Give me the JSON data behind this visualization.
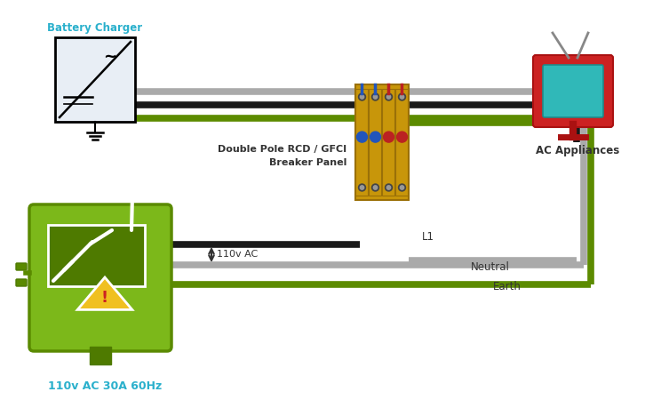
{
  "bg_color": "#ffffff",
  "wire_black": "#1a1a1a",
  "wire_gray": "#aaaaaa",
  "wire_green": "#5c8b00",
  "text_cyan": "#2ab0cc",
  "text_dark": "#333333",
  "battery_charger_label": "Battery Charger",
  "ac_appliances_label": "AC Appliances",
  "breaker_label1": "Double Pole RCD / GFCI",
  "breaker_label2": "Breaker Panel",
  "l1_label": "L1",
  "neutral_label": "Neutral",
  "earth_label": "Earth",
  "voltage_label": "110v AC",
  "bottom_label": "110v AC 30A 60Hz",
  "green_box_fill": "#7cb81a",
  "green_box_edge": "#5a8a00",
  "green_box_dark": "#4e7a00",
  "yellow_fill": "#f0c020",
  "red_warn": "#cc2222",
  "tv_red": "#cc2222",
  "tv_cyan": "#30b8b8",
  "tv_dark_red": "#aa1111",
  "charger_bg": "#e8eef5",
  "breaker_gold": "#c8960a",
  "breaker_gold_dark": "#9a7008",
  "breaker_blue": "#2255bb",
  "breaker_red": "#bb2222",
  "antenna_gray": "#888888"
}
